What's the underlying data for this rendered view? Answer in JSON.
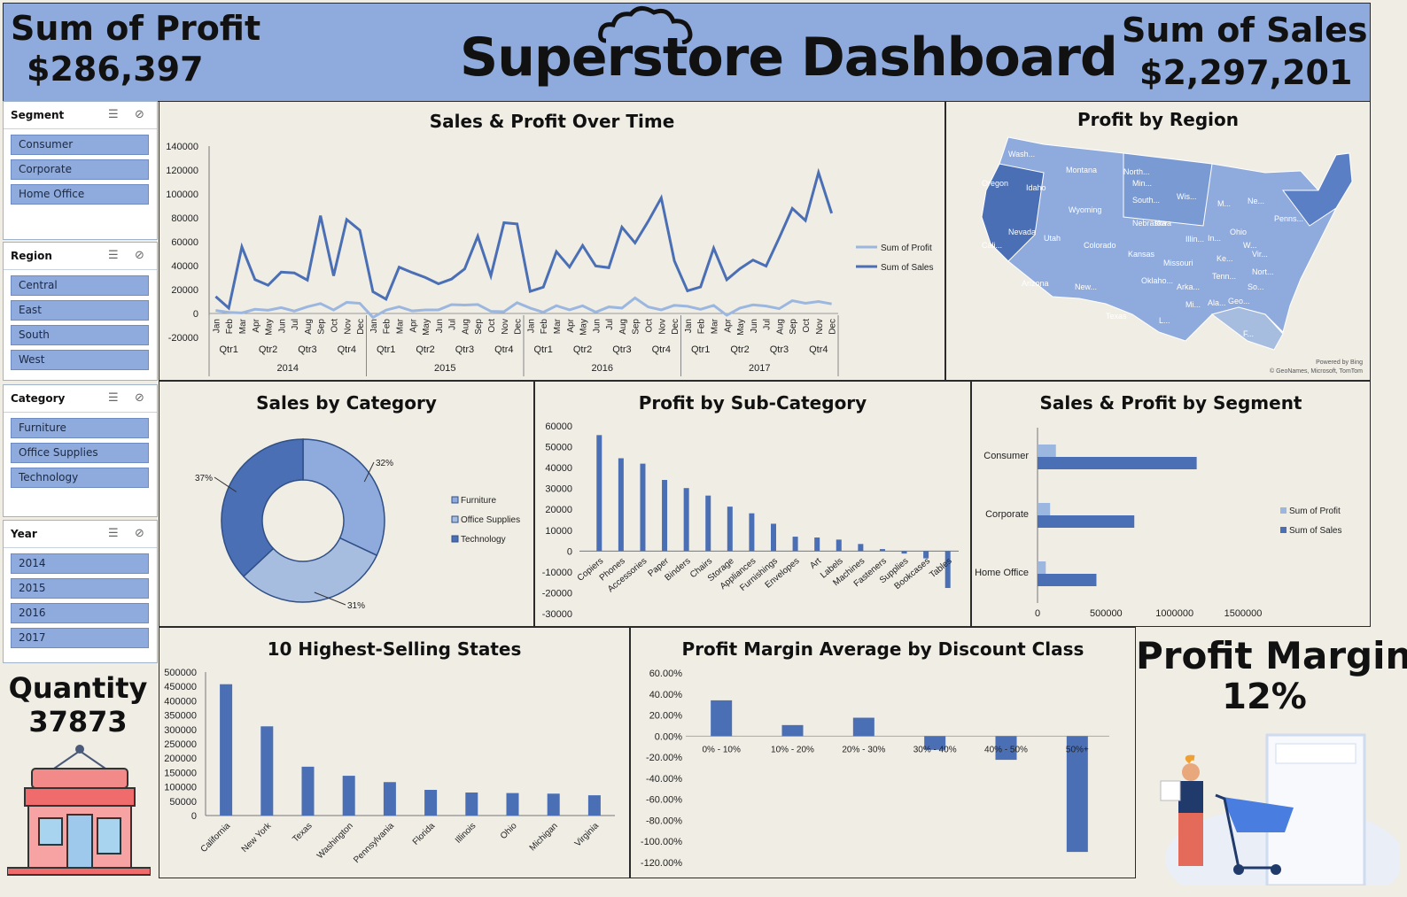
{
  "header": {
    "profit_title": "Sum of Profit",
    "profit_value": "$286,397",
    "brand_word": "Superstore",
    "brand_suffix": "Dashboard",
    "sales_title": "Sum of Sales",
    "sales_value": "$2,297,201"
  },
  "slicers": [
    {
      "title": "Segment",
      "items": [
        "Consumer",
        "Corporate",
        "Home Office"
      ]
    },
    {
      "title": "Region",
      "items": [
        "Central",
        "East",
        "South",
        "West"
      ]
    },
    {
      "title": "Category",
      "items": [
        "Furniture",
        "Office Supplies",
        "Technology"
      ]
    },
    {
      "title": "Year",
      "items": [
        "2014",
        "2015",
        "2016",
        "2017"
      ]
    }
  ],
  "kpis": {
    "quantity_label": "Quantity",
    "quantity_value": "37873",
    "margin_label": "Profit Margin",
    "margin_value": "12%"
  },
  "map": {
    "title": "Profit by Region",
    "labels": [
      "Wash...",
      "Montana",
      "North...",
      "Oregon",
      "Idaho",
      "Min...",
      "Wis...",
      "M...",
      "Wyoming",
      "South...",
      "Ne...",
      "Iowa",
      "Penns...",
      "Nebraska",
      "Ohio",
      "Cali...",
      "Nevada",
      "Utah",
      "Colorado",
      "Illin...",
      "In...",
      "W...",
      "Kansas",
      "Ke...",
      "Vir...",
      "Missouri",
      "Nort...",
      "Arizona",
      "New...",
      "Oklaho...",
      "Arka...",
      "Tenn...",
      "So...",
      "Ala...",
      "Geo...",
      "Mi...",
      "Texas",
      "L...",
      "F..."
    ],
    "credit1": "Powered by Bing",
    "credit2": "© GeoNames, Microsoft, TomTom"
  },
  "chart_data": [
    {
      "type": "line",
      "title": "Sales & Profit Over Time",
      "x": [
        "Jan",
        "Feb",
        "Mar",
        "Apr",
        "May",
        "Jun",
        "Jul",
        "Aug",
        "Sep",
        "Oct",
        "Nov",
        "Dec",
        "Jan",
        "Feb",
        "Mar",
        "Apr",
        "May",
        "Jun",
        "Jul",
        "Aug",
        "Sep",
        "Oct",
        "Nov",
        "Dec",
        "Jan",
        "Feb",
        "Mar",
        "Apr",
        "May",
        "Jun",
        "Jul",
        "Aug",
        "Sep",
        "Oct",
        "Nov",
        "Dec",
        "Jan",
        "Feb",
        "Mar",
        "Apr",
        "May",
        "Jun",
        "Jul",
        "Aug",
        "Sep",
        "Oct",
        "Nov",
        "Dec"
      ],
      "quarters": [
        "Qtr1",
        "Qtr2",
        "Qtr3",
        "Qtr4",
        "Qtr1",
        "Qtr2",
        "Qtr3",
        "Qtr4",
        "Qtr1",
        "Qtr2",
        "Qtr3",
        "Qtr4",
        "Qtr1",
        "Qtr2",
        "Qtr3",
        "Qtr4"
      ],
      "years": [
        "2014",
        "2015",
        "2016",
        "2017"
      ],
      "yticks": [
        "140000",
        "120000",
        "100000",
        "80000",
        "60000",
        "40000",
        "20000",
        "0",
        "-20000"
      ],
      "ylim": [
        -20000,
        140000
      ],
      "series": [
        {
          "name": "Sum of Profit",
          "color": "#9bb7e0",
          "values": [
            2500,
            900,
            500,
            3500,
            2700,
            4900,
            2000,
            5600,
            8300,
            2900,
            9300,
            8500,
            -3300,
            2800,
            5600,
            2100,
            3000,
            3000,
            7400,
            7000,
            7500,
            1800,
            1500,
            9000,
            4500,
            1000,
            6500,
            3000,
            6400,
            1100,
            5500,
            4500,
            13000,
            5500,
            3000,
            6800,
            6000,
            3500,
            6700,
            -1500,
            4500,
            7200,
            6200,
            4000,
            10700,
            8500,
            10000,
            8000
          ]
        },
        {
          "name": "Sum of Sales",
          "color": "#4a6fb5",
          "values": [
            14200,
            4500,
            55700,
            28300,
            23600,
            34600,
            33900,
            27900,
            81800,
            31500,
            78600,
            69600,
            18200,
            12000,
            38700,
            34200,
            30100,
            24800,
            28800,
            37300,
            64600,
            31500,
            75900,
            74900,
            18500,
            22000,
            51700,
            38800,
            56900,
            39700,
            38300,
            72200,
            59000,
            77000,
            96700,
            44000,
            18900,
            22200,
            54600,
            28200,
            37400,
            44700,
            39600,
            63200,
            87900,
            77800,
            117900,
            83800
          ]
        }
      ]
    },
    {
      "type": "pie",
      "title": "Sales by Category",
      "categories": [
        "Furniture",
        "Office Supplies",
        "Technology"
      ],
      "values": [
        32,
        31,
        37
      ],
      "labels": [
        "32%",
        "31%",
        "37%"
      ],
      "colors": [
        "#8faadc",
        "#a7bde0",
        "#4a6fb5"
      ]
    },
    {
      "type": "bar",
      "title": "Profit by Sub-Category",
      "categories": [
        "Copiers",
        "Phones",
        "Accessories",
        "Paper",
        "Binders",
        "Chairs",
        "Storage",
        "Appliances",
        "Furnishings",
        "Envelopes",
        "Art",
        "Labels",
        "Machines",
        "Fasteners",
        "Supplies",
        "Bookcases",
        "Tables"
      ],
      "values": [
        55600,
        44500,
        41900,
        34100,
        30200,
        26600,
        21300,
        18100,
        13100,
        6900,
        6500,
        5500,
        3400,
        950,
        -1200,
        -3500,
        -17700
      ],
      "yticks": [
        "60000",
        "50000",
        "40000",
        "30000",
        "20000",
        "10000",
        "0",
        "-10000",
        "-20000",
        "-30000"
      ],
      "ylim": [
        -30000,
        60000
      ]
    },
    {
      "type": "bar",
      "title": "Sales & Profit by Segment",
      "categories": [
        "Consumer",
        "Corporate",
        "Home Office"
      ],
      "xticks": [
        "0",
        "500000",
        "1000000",
        "1500000"
      ],
      "xlim": [
        0,
        1500000
      ],
      "series": [
        {
          "name": "Sum of Profit",
          "color": "#9bb7e0",
          "values": [
            134100,
            91900,
            60300
          ]
        },
        {
          "name": "Sum of Sales",
          "color": "#4a6fb5",
          "values": [
            1161400,
            706100,
            429700
          ]
        }
      ]
    },
    {
      "type": "bar",
      "title": "10 Highest-Selling States",
      "categories": [
        "California",
        "New York",
        "Texas",
        "Washington",
        "Pennsylvania",
        "Florida",
        "Illinois",
        "Ohio",
        "Michigan",
        "Virginia"
      ],
      "values": [
        457700,
        310900,
        170200,
        138600,
        116500,
        89500,
        80200,
        78300,
        76300,
        70600
      ],
      "yticks": [
        "500000",
        "450000",
        "400000",
        "350000",
        "300000",
        "250000",
        "200000",
        "150000",
        "100000",
        "50000",
        "0"
      ],
      "ylim": [
        0,
        500000
      ]
    },
    {
      "type": "bar",
      "title": "Profit Margin Average by Discount Class",
      "categories": [
        "0% - 10%",
        "10% - 20%",
        "20% - 30%",
        "30% - 40%",
        "40% - 50%",
        "50%+"
      ],
      "values": [
        34.0,
        10.5,
        17.5,
        -13.0,
        -22.5,
        -110.0
      ],
      "yticks": [
        "60.00%",
        "40.00%",
        "20.00%",
        "0.00%",
        "-20.00%",
        "-40.00%",
        "-60.00%",
        "-80.00%",
        "-100.00%",
        "-120.00%"
      ],
      "ylim": [
        -120,
        60
      ]
    }
  ]
}
